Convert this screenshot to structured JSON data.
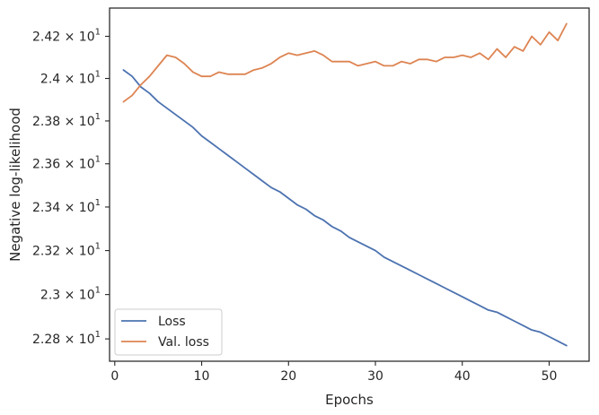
{
  "chart_data": {
    "type": "line",
    "xlabel": "Epochs",
    "ylabel": "Negative log-likelihood",
    "xlim": [
      -0.6,
      54.6
    ],
    "ylim": [
      22.7,
      24.335
    ],
    "y_scale": "log",
    "grid": false,
    "legend_position": "lower-left",
    "x_ticks": [
      0,
      10,
      20,
      30,
      40,
      50
    ],
    "y_ticks": [
      {
        "value": 22.8,
        "mantissa": "2.28",
        "base": "10",
        "exponent": "1"
      },
      {
        "value": 23.0,
        "mantissa": "2.3",
        "base": "10",
        "exponent": "1"
      },
      {
        "value": 23.2,
        "mantissa": "2.32",
        "base": "10",
        "exponent": "1"
      },
      {
        "value": 23.4,
        "mantissa": "2.34",
        "base": "10",
        "exponent": "1"
      },
      {
        "value": 23.6,
        "mantissa": "2.36",
        "base": "10",
        "exponent": "1"
      },
      {
        "value": 23.8,
        "mantissa": "2.38",
        "base": "10",
        "exponent": "1"
      },
      {
        "value": 24.0,
        "mantissa": "2.4",
        "base": "10",
        "exponent": "1"
      },
      {
        "value": 24.2,
        "mantissa": "2.42",
        "base": "10",
        "exponent": "1"
      }
    ],
    "x": [
      1,
      2,
      3,
      4,
      5,
      6,
      7,
      8,
      9,
      10,
      11,
      12,
      13,
      14,
      15,
      16,
      17,
      18,
      19,
      20,
      21,
      22,
      23,
      24,
      25,
      26,
      27,
      28,
      29,
      30,
      31,
      32,
      33,
      34,
      35,
      36,
      37,
      38,
      39,
      40,
      41,
      42,
      43,
      44,
      45,
      46,
      47,
      48,
      49,
      50,
      51,
      52
    ],
    "series": [
      {
        "name": "Loss",
        "color": "#4c72b0",
        "values": [
          24.04,
          24.01,
          23.96,
          23.93,
          23.89,
          23.86,
          23.83,
          23.8,
          23.77,
          23.73,
          23.7,
          23.67,
          23.64,
          23.61,
          23.58,
          23.55,
          23.52,
          23.49,
          23.47,
          23.44,
          23.41,
          23.39,
          23.36,
          23.34,
          23.31,
          23.29,
          23.26,
          23.24,
          23.22,
          23.2,
          23.17,
          23.15,
          23.13,
          23.11,
          23.09,
          23.07,
          23.05,
          23.03,
          23.01,
          22.99,
          22.97,
          22.95,
          22.93,
          22.92,
          22.9,
          22.88,
          22.86,
          22.84,
          22.83,
          22.81,
          22.79,
          22.77
        ]
      },
      {
        "name": "Val. loss",
        "color": "#dd8452",
        "values": [
          23.89,
          23.92,
          23.97,
          24.01,
          24.06,
          24.11,
          24.1,
          24.07,
          24.03,
          24.01,
          24.01,
          24.03,
          24.02,
          24.02,
          24.02,
          24.04,
          24.05,
          24.07,
          24.1,
          24.12,
          24.11,
          24.12,
          24.13,
          24.11,
          24.08,
          24.08,
          24.08,
          24.06,
          24.07,
          24.08,
          24.06,
          24.06,
          24.08,
          24.07,
          24.09,
          24.09,
          24.08,
          24.1,
          24.1,
          24.11,
          24.1,
          24.12,
          24.09,
          24.14,
          24.1,
          24.15,
          24.13,
          24.2,
          24.16,
          24.22,
          24.18,
          24.26
        ]
      }
    ]
  }
}
